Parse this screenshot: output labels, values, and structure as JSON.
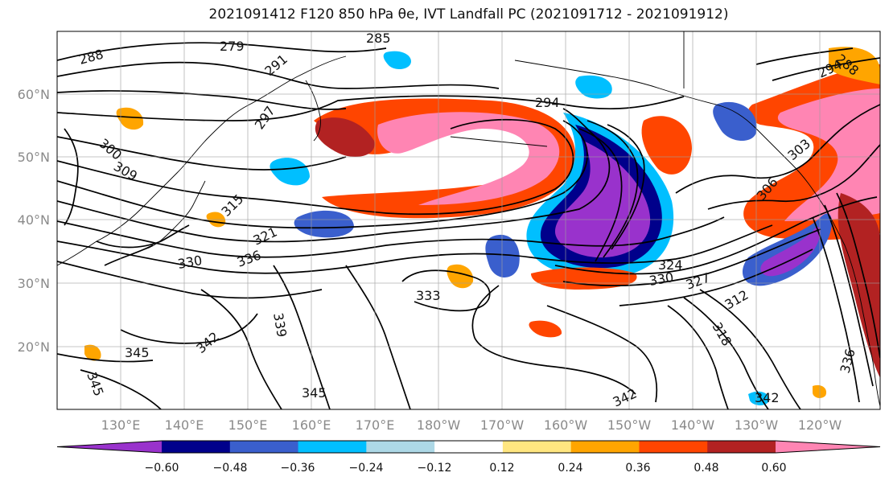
{
  "title": "2021091412 F120 850 hPa θe, IVT Landfall PC (2021091712 - 2021091912)",
  "map": {
    "lat_labels": [
      "60°N",
      "50°N",
      "40°N",
      "30°N",
      "20°N"
    ],
    "lon_labels": [
      "130°E",
      "140°E",
      "150°E",
      "160°E",
      "170°E",
      "180°W",
      "170°W",
      "160°W",
      "150°W",
      "140°W",
      "130°W",
      "120°W"
    ],
    "contour_labels": [
      {
        "text": "288"
      },
      {
        "text": "279"
      },
      {
        "text": "285"
      },
      {
        "text": "291"
      },
      {
        "text": "297"
      },
      {
        "text": "294"
      },
      {
        "text": "300"
      },
      {
        "text": "309"
      },
      {
        "text": "315"
      },
      {
        "text": "321"
      },
      {
        "text": "330"
      },
      {
        "text": "336"
      },
      {
        "text": "333"
      },
      {
        "text": "324"
      },
      {
        "text": "330"
      },
      {
        "text": "327"
      },
      {
        "text": "312"
      },
      {
        "text": "318"
      },
      {
        "text": "339"
      },
      {
        "text": "342"
      },
      {
        "text": "345"
      },
      {
        "text": "345"
      },
      {
        "text": "345"
      },
      {
        "text": "342"
      },
      {
        "text": "342"
      },
      {
        "text": "336"
      },
      {
        "text": "306"
      },
      {
        "text": "303"
      },
      {
        "text": "288"
      },
      {
        "text": "294"
      }
    ]
  },
  "colorbar": {
    "tick_labels": [
      "−0.60",
      "−0.48",
      "−0.36",
      "−0.24",
      "−0.12",
      "0.12",
      "0.24",
      "0.36",
      "0.48",
      "0.60"
    ],
    "colors": [
      "#9932cc",
      "#00008b",
      "#3a5fcd",
      "#00bfff",
      "#add8e6",
      "#ffffff",
      "#ffe680",
      "#ffa500",
      "#ff4500",
      "#b22222",
      "#ff85b3"
    ]
  }
}
